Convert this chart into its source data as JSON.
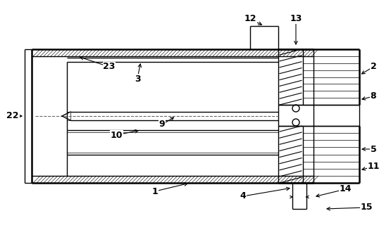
{
  "bg_color": "#ffffff",
  "line_color": "#000000",
  "lw": 1.0,
  "tlw": 1.8,
  "fig_width": 5.55,
  "fig_height": 3.27,
  "dpi": 100
}
